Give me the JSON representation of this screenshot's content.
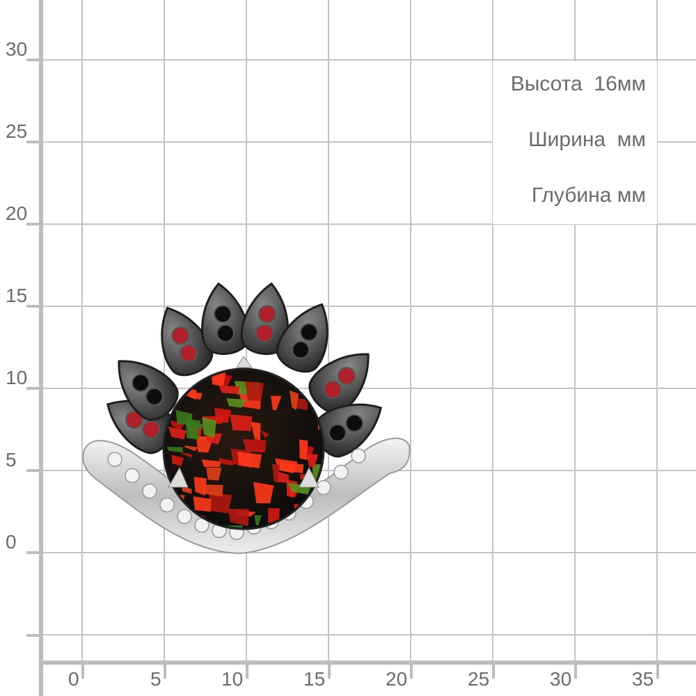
{
  "y_axis": {
    "labels": [
      "30",
      "25",
      "20",
      "15",
      "10",
      "5",
      "0"
    ]
  },
  "x_axis": {
    "labels": [
      "0",
      "5",
      "10",
      "15",
      "20",
      "25",
      "30",
      "35"
    ]
  },
  "dimensions": {
    "height": "Высота  16мм",
    "width": "Ширина  мм",
    "depth": "Глубина мм"
  },
  "colors": {
    "grid": "#c4c4c4",
    "axis": "#bdbdbd",
    "label": "#6b6b6b",
    "opal_red": "#e0201a",
    "metal_dark": "#3a3a3a"
  }
}
